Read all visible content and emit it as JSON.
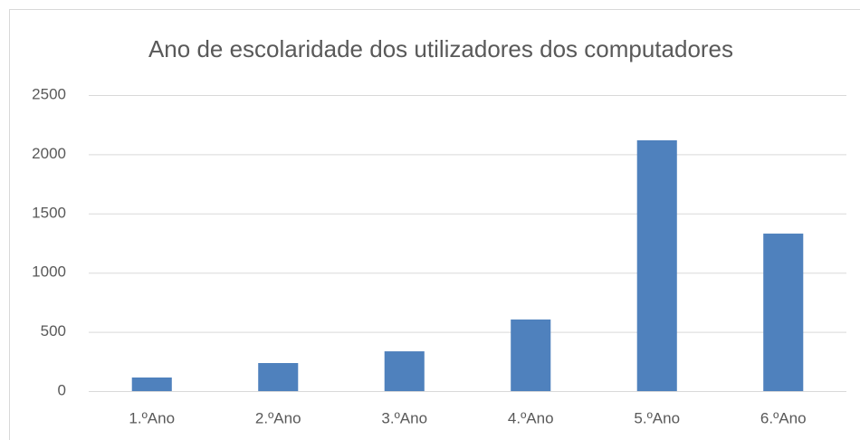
{
  "chart_data": {
    "type": "bar",
    "title": "Ano de escolaridade dos utilizadores dos computadores",
    "categories": [
      "1.ºAno",
      "2.ºAno",
      "3.ºAno",
      "4.ºAno",
      "5.ºAno",
      "6.ºAno"
    ],
    "values": [
      115,
      237,
      336,
      605,
      2118,
      1330
    ],
    "color": "#4f81bd",
    "ylim": [
      0,
      2500
    ],
    "yticks": [
      0,
      500,
      1000,
      1500,
      2000,
      2500
    ],
    "grid": true
  }
}
